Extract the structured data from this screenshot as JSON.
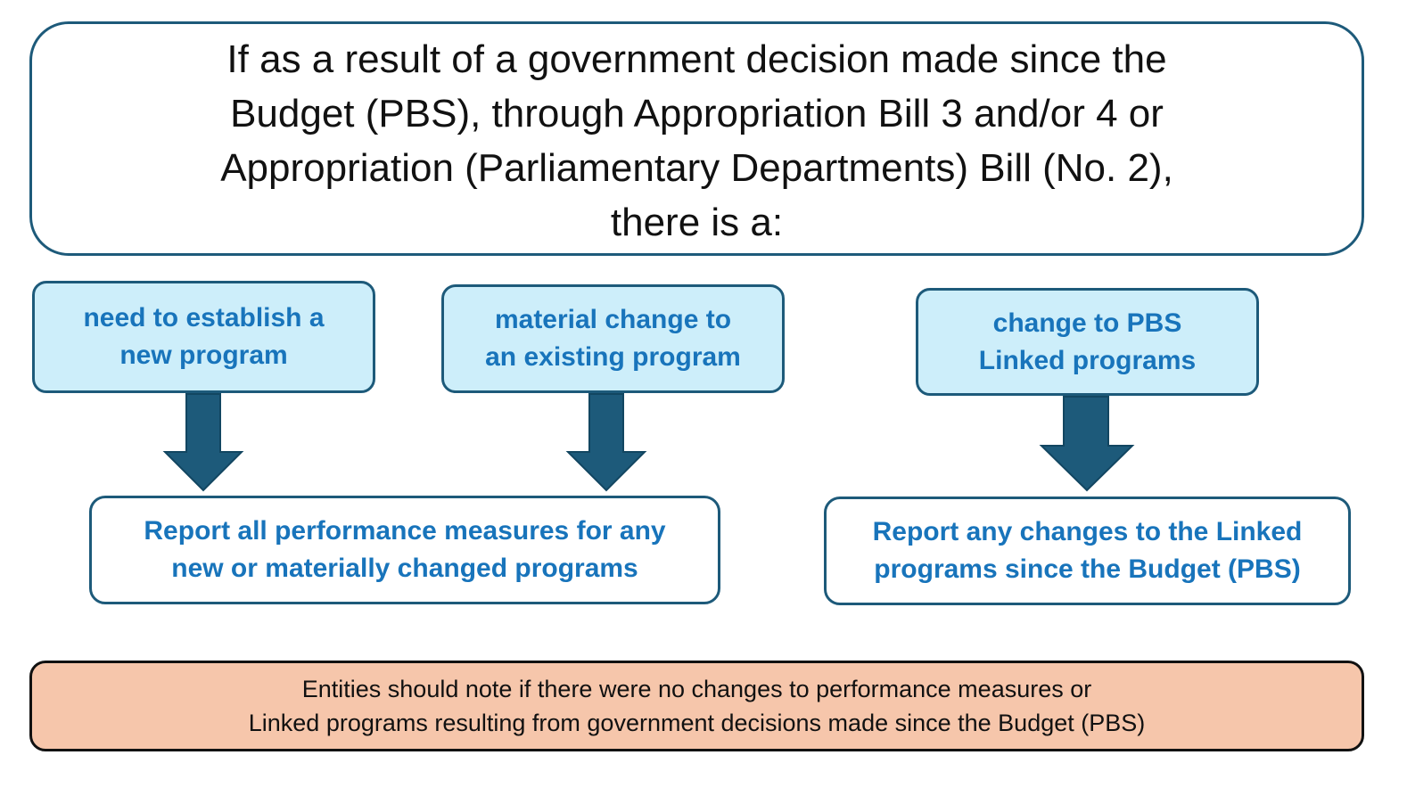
{
  "top": {
    "lines": [
      "If as a result of a government decision made since the",
      "Budget (PBS), through Appropriation Bill 3 and/or 4 or",
      "Appropriation (Parliamentary Departments) Bill (No. 2),",
      "there is a:"
    ]
  },
  "conditions": [
    {
      "lines": [
        "need to establish a",
        "new program"
      ]
    },
    {
      "lines": [
        "material change to",
        "an existing program"
      ]
    },
    {
      "lines": [
        "change to PBS",
        "Linked programs"
      ]
    }
  ],
  "reports": [
    {
      "lines": [
        "Report all performance measures for any",
        "new or materially changed programs"
      ]
    },
    {
      "lines": [
        "Report any changes to the Linked",
        "programs since the Budget (PBS)"
      ]
    }
  ],
  "note": {
    "lines": [
      "Entities should note if there were no changes to performance measures or",
      "Linked programs resulting from government decisions made since the Budget (PBS)"
    ]
  },
  "colors": {
    "box_border": "#1d5a7a",
    "condition_fill": "#cdeefa",
    "accent_text": "#1874bb",
    "arrow_fill": "#1d5a7a",
    "note_fill": "#f6c6ab"
  }
}
